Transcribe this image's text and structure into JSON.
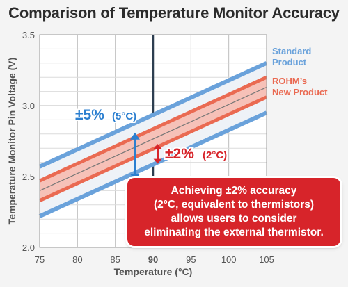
{
  "chart_data": {
    "type": "line",
    "title": "Comparison of Temperature Monitor Accuracy",
    "xlabel": "Temperature (°C)",
    "ylabel": "Temperature Monitor Pin Voltage (V)",
    "xlim": [
      75,
      105
    ],
    "ylim": [
      2.0,
      3.5
    ],
    "x_ticks": [
      "75",
      "80",
      "85",
      "90",
      "95",
      "100",
      "105"
    ],
    "y_ticks": [
      "2.0",
      "2.5",
      "3.0",
      "3.5"
    ],
    "highlight_x": "90",
    "grid": true,
    "bands": [
      {
        "name": "Standard Product",
        "name_lines": [
          "Standard",
          "Product"
        ],
        "color": "#6aa2db",
        "fill": "#eef2f7",
        "upper": {
          "x": [
            75,
            105
          ],
          "y": [
            2.57,
            3.3
          ]
        },
        "lower": {
          "x": [
            75,
            105
          ],
          "y": [
            2.22,
            2.95
          ]
        }
      },
      {
        "name": "ROHM's New Product",
        "name_lines": [
          "ROHM’s",
          "New Product"
        ],
        "color": "#ea6a52",
        "fill": "#f6c1b8",
        "upper": {
          "x": [
            75,
            105
          ],
          "y": [
            2.47,
            3.2
          ]
        },
        "lower": {
          "x": [
            75,
            105
          ],
          "y": [
            2.33,
            3.06
          ]
        }
      }
    ],
    "center_line": {
      "x": [
        75,
        105
      ],
      "y": [
        2.4,
        3.13
      ],
      "color": "#777777"
    },
    "annotations": {
      "standard": {
        "main": "±5%",
        "sub": "(5°C)",
        "color": "#2b7fd0",
        "y_from": 2.81,
        "y_to": 2.47
      },
      "rohm": {
        "main": "±2%",
        "sub": "(2°C)",
        "color": "#d7242a",
        "y_from": 2.73,
        "y_to": 2.59
      }
    }
  },
  "note": {
    "lines": [
      "Achieving ±2% accuracy",
      "(2°C, equivalent to thermistors)",
      "allows users to consider",
      "eliminating the external thermistor."
    ]
  }
}
